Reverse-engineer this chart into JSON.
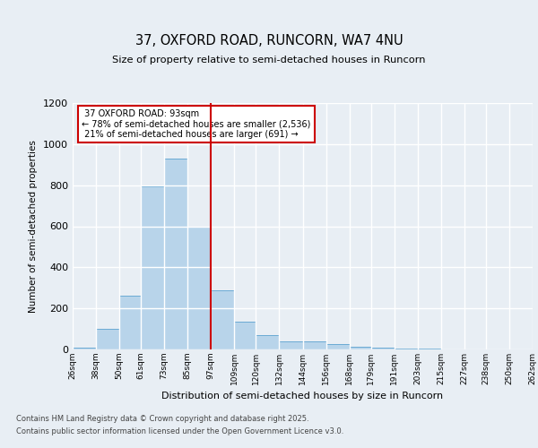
{
  "title": "37, OXFORD ROAD, RUNCORN, WA7 4NU",
  "subtitle": "Size of property relative to semi-detached houses in Runcorn",
  "xlabel": "Distribution of semi-detached houses by size in Runcorn",
  "ylabel": "Number of semi-detached properties",
  "property_label": "37 OXFORD ROAD: 93sqm",
  "pct_smaller": "78% of semi-detached houses are smaller (2,536)",
  "pct_larger": "21% of semi-detached houses are larger (691)",
  "bins": [
    26,
    38,
    50,
    61,
    73,
    85,
    97,
    109,
    120,
    132,
    144,
    156,
    168,
    179,
    191,
    203,
    215,
    227,
    238,
    250,
    262
  ],
  "bin_labels": [
    "26sqm",
    "38sqm",
    "50sqm",
    "61sqm",
    "73sqm",
    "85sqm",
    "97sqm",
    "109sqm",
    "120sqm",
    "132sqm",
    "144sqm",
    "156sqm",
    "168sqm",
    "179sqm",
    "191sqm",
    "203sqm",
    "215sqm",
    "227sqm",
    "238sqm",
    "250sqm",
    "262sqm"
  ],
  "values": [
    10,
    100,
    260,
    795,
    930,
    600,
    290,
    135,
    70,
    40,
    40,
    25,
    15,
    10,
    5,
    3,
    2,
    1,
    1,
    1
  ],
  "bar_color": "#b8d4ea",
  "bar_edge_color": "#6aaad4",
  "vline_color": "#cc0000",
  "vline_x": 97,
  "background_color": "#e8eef4",
  "plot_bg_color": "#e8eef4",
  "grid_color": "#ffffff",
  "annotation_box_color": "#cc0000",
  "footer1": "Contains HM Land Registry data © Crown copyright and database right 2025.",
  "footer2": "Contains public sector information licensed under the Open Government Licence v3.0.",
  "ylim": [
    0,
    1200
  ],
  "yticks": [
    0,
    200,
    400,
    600,
    800,
    1000,
    1200
  ]
}
